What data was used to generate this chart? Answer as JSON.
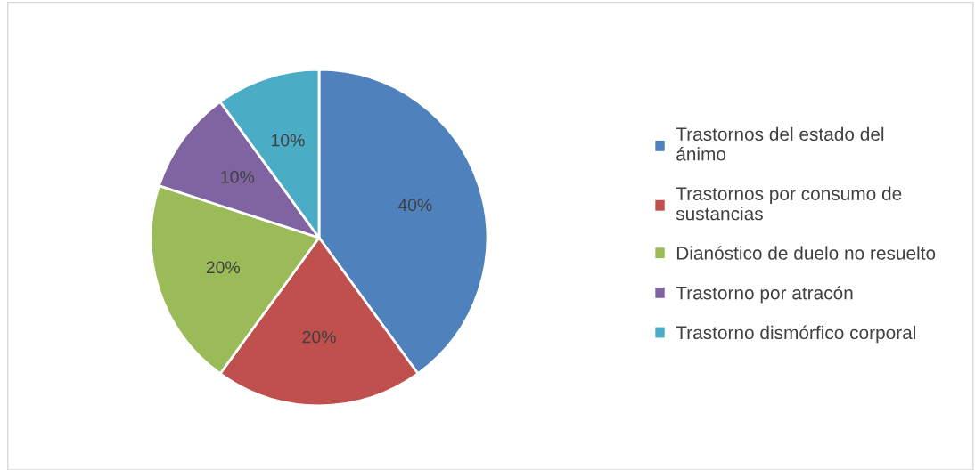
{
  "chart_data": {
    "type": "pie",
    "categories": [
      "Trastornos del estado del\nánimo",
      "Trastornos por consumo de\nsustancias",
      "Dianóstico de duelo no resuelto",
      "Trastorno por atracón",
      "Trastorno dismórfico corporal"
    ],
    "values": [
      40,
      20,
      20,
      10,
      10
    ],
    "value_labels": [
      "40%",
      "20%",
      "20%",
      "10%",
      "10%"
    ],
    "colors": [
      "#4f81bd",
      "#c0504d",
      "#9bbb59",
      "#8064a2",
      "#4bacc6"
    ],
    "legend": "right"
  }
}
